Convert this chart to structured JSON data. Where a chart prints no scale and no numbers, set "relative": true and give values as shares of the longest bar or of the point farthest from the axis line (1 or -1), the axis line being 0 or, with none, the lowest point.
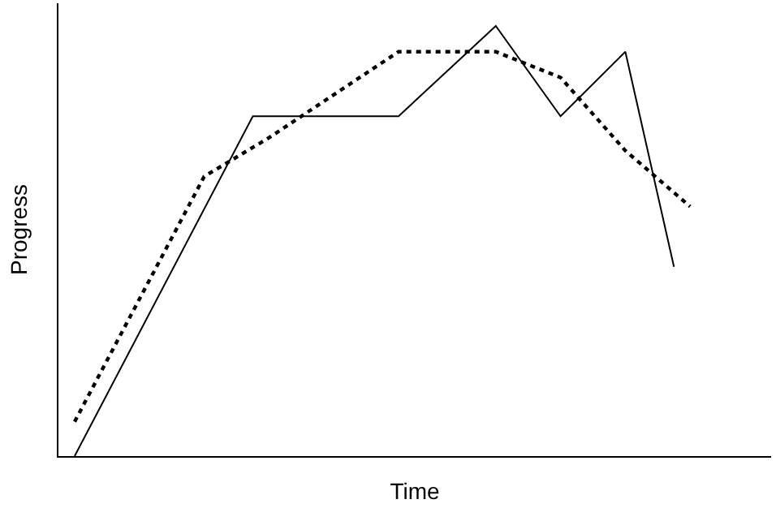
{
  "chart_data": {
    "type": "line",
    "relative": true,
    "xlabel": "Time",
    "ylabel": "Progress",
    "grid": false,
    "marker": "none",
    "categories": [
      null,
      null,
      null,
      null,
      null,
      null,
      null,
      null,
      null,
      null,
      null,
      null,
      null,
      null,
      null,
      null,
      null,
      null,
      null,
      null,
      null,
      null,
      null,
      null,
      null,
      null,
      null,
      null,
      null,
      null,
      null,
      null,
      null,
      null,
      null,
      null,
      null,
      null,
      null
    ],
    "series": [
      {
        "color": "#000000",
        "line_style": "solid",
        "values": [
          0,
          null,
          null,
          null,
          null,
          null,
          null,
          null,
          null,
          null,
          null,
          0.79,
          null,
          null,
          null,
          null,
          null,
          null,
          null,
          null,
          0.79,
          null,
          null,
          null,
          null,
          null,
          1,
          null,
          null,
          null,
          0.79,
          null,
          null,
          null,
          0.94,
          null,
          null,
          0.44,
          null
        ]
      },
      {
        "color": "#000000",
        "line_style": "dotted",
        "values": [
          0.08,
          null,
          null,
          null,
          null,
          null,
          null,
          null,
          0.65,
          null,
          null,
          null,
          0.74,
          null,
          null,
          null,
          null,
          null,
          null,
          null,
          0.94,
          null,
          null,
          null,
          null,
          null,
          0.94,
          null,
          null,
          null,
          0.88,
          null,
          null,
          null,
          0.71,
          null,
          null,
          null,
          0.58
        ]
      }
    ]
  }
}
